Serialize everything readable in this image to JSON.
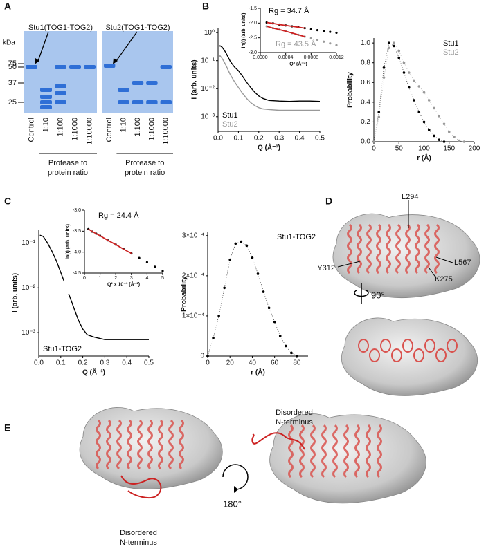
{
  "panel_labels": [
    "A",
    "B",
    "C",
    "D",
    "E"
  ],
  "gel": {
    "unit": "kDa",
    "markers": [
      75,
      50,
      37,
      25
    ],
    "gels": [
      {
        "title": "Stu1(TOG1-TOG2)"
      },
      {
        "title": "Stu2(TOG1-TOG2)"
      }
    ],
    "lanes": [
      "Control",
      "1:10",
      "1:100",
      "1:1000",
      "1:10000"
    ],
    "caption": [
      "Protease to",
      "protein ratio"
    ]
  },
  "chart_data": [
    {
      "type": "line",
      "xlabel": "Q (Å⁻¹)",
      "ylabel": "I (arb. units)",
      "yscale": "log",
      "legend": "lower left",
      "xlim": [
        0,
        0.5
      ],
      "xticks": [
        {
          "value": 0,
          "label": "0.0"
        },
        0.1,
        0.2,
        0.3,
        0.4,
        0.5
      ],
      "ylim": [
        0.0003,
        1.5
      ],
      "yticks": [
        {
          "value": 1,
          "label": "10⁰"
        },
        {
          "value": 0.1,
          "label": "10⁻¹"
        },
        {
          "value": 0.01,
          "label": "10⁻²"
        },
        {
          "value": 0.001,
          "label": "10⁻³"
        }
      ],
      "x": [
        0.005,
        0.01,
        0.02,
        0.03,
        0.04,
        0.05,
        0.06,
        0.08,
        0.1,
        0.12,
        0.14,
        0.16,
        0.18,
        0.2,
        0.22,
        0.25,
        0.3,
        0.35,
        0.4,
        0.45,
        0.5
      ],
      "series": [
        {
          "name": "Stu1",
          "color": "#000000",
          "values": [
            0.32,
            0.34,
            0.3,
            0.24,
            0.18,
            0.13,
            0.095,
            0.06,
            0.044,
            0.028,
            0.017,
            0.011,
            0.0075,
            0.0055,
            0.0045,
            0.0038,
            0.0036,
            0.0035,
            0.0036,
            0.0036,
            0.0035
          ]
        },
        {
          "name": "Stu2",
          "color": "#999999",
          "values": [
            0.14,
            0.15,
            0.12,
            0.09,
            0.065,
            0.045,
            0.032,
            0.018,
            0.011,
            0.0068,
            0.0045,
            0.0032,
            0.0025,
            0.0021,
            0.0019,
            0.0018,
            0.0017,
            0.0017,
            0.0017,
            0.0017,
            0.0017
          ]
        }
      ]
    },
    {
      "type": "scatter",
      "xlabel": "Q² (Å⁻²)",
      "ylabel": "ln(I) (arb. units)",
      "annotations": [
        {
          "text": "Rg = 34.7 Å",
          "color": "#000000"
        },
        {
          "text": "Rg = 43.5 Å",
          "color": "#999999"
        }
      ],
      "xlim": [
        0,
        0.0012
      ],
      "xticks": [
        {
          "value": 0,
          "label": "0.0000"
        },
        {
          "value": 0.0004,
          "label": "0.0004"
        },
        {
          "value": 0.0008,
          "label": "0.0008"
        },
        {
          "value": 0.0012,
          "label": "0.0012"
        }
      ],
      "ylim": [
        -3,
        -1.5
      ],
      "yticks": [
        -1.5,
        {
          "value": -2,
          "label": "-2.0"
        },
        -2.5,
        {
          "value": -3,
          "label": "-3.0"
        }
      ],
      "x": [
        0.0001,
        0.0002,
        0.0003,
        0.0004,
        0.0005,
        0.0006,
        0.0007,
        0.0008,
        0.0009,
        0.001,
        0.0011,
        0.0012
      ],
      "series": [
        {
          "color": "#000000",
          "style": "points",
          "values": [
            -1.98,
            -2.01,
            -2.05,
            -2.08,
            -2.11,
            -2.14,
            -2.17,
            -2.21,
            -2.24,
            -2.27,
            -2.3,
            -2.33
          ]
        },
        {
          "color": "#999999",
          "style": "points",
          "values": [
            -2.11,
            -2.17,
            -2.22,
            -2.28,
            -2.34,
            -2.4,
            -2.46,
            -2.51,
            -2.57,
            -2.63,
            -2.69,
            -2.75
          ]
        },
        {
          "color": "#cc2222",
          "style": "line",
          "values": [
            -1.98,
            -2.01,
            -2.05,
            -2.08,
            -2.11,
            -2.14,
            -2.17,
            null,
            null,
            null,
            null,
            null
          ]
        },
        {
          "color": "#cc2222",
          "style": "line",
          "values": [
            -2.11,
            -2.17,
            -2.22,
            -2.28,
            -2.34,
            -2.4,
            -2.46,
            null,
            null,
            null,
            null,
            null
          ]
        }
      ]
    },
    {
      "type": "line",
      "xlabel": "r (Å)",
      "ylabel": "Probability",
      "legend": "upper right",
      "xlim": [
        0,
        200
      ],
      "xticks": [
        0,
        50,
        100,
        150,
        200
      ],
      "ylim": [
        0,
        1.05
      ],
      "yticks": [
        {
          "value": 0,
          "label": "0.0"
        },
        0.2,
        0.4,
        0.6,
        0.8,
        {
          "value": 1,
          "label": "1.0"
        }
      ],
      "x": [
        0,
        10,
        20,
        30,
        40,
        50,
        60,
        70,
        80,
        90,
        100,
        110,
        120,
        130,
        140,
        150,
        160,
        170,
        180
      ],
      "series": [
        {
          "name": "Stu1",
          "color": "#000000",
          "values": [
            0,
            0.3,
            0.75,
            1.0,
            0.97,
            0.85,
            0.7,
            0.55,
            0.42,
            0.3,
            0.2,
            0.12,
            0.06,
            0.02,
            0,
            null,
            null,
            null,
            null
          ]
        },
        {
          "name": "Stu2",
          "color": "#999999",
          "values": [
            0,
            0.25,
            0.65,
            0.95,
            1.0,
            0.92,
            0.8,
            0.7,
            0.62,
            0.56,
            0.5,
            0.42,
            0.34,
            0.26,
            0.18,
            0.1,
            0.05,
            0.01,
            0
          ]
        }
      ]
    },
    {
      "type": "line",
      "xlabel": "Q (Å⁻¹)",
      "ylabel": "I (arb. units)",
      "yscale": "log",
      "legend": "lower left",
      "xlim": [
        0,
        0.5
      ],
      "xticks": [
        {
          "value": 0,
          "label": "0.0"
        },
        0.1,
        0.2,
        0.3,
        0.4,
        0.5
      ],
      "ylim": [
        0.0003,
        0.2
      ],
      "yticks": [
        {
          "value": 0.1,
          "label": "10⁻¹"
        },
        {
          "value": 0.01,
          "label": "10⁻²"
        },
        {
          "value": 0.001,
          "label": "10⁻³"
        }
      ],
      "x": [
        0.005,
        0.02,
        0.04,
        0.06,
        0.08,
        0.1,
        0.12,
        0.14,
        0.16,
        0.18,
        0.2,
        0.22,
        0.25,
        0.3,
        0.35,
        0.4,
        0.45,
        0.5
      ],
      "series": [
        {
          "name": "Stu1-TOG2",
          "color": "#000000",
          "values": [
            0.15,
            0.14,
            0.1,
            0.065,
            0.04,
            0.022,
            0.012,
            0.0065,
            0.0035,
            0.0019,
            0.0012,
            0.0009,
            0.0008,
            0.0007,
            0.0007,
            0.0007,
            0.0007,
            0.0007
          ]
        }
      ]
    },
    {
      "type": "scatter",
      "xlabel": "Q² x 10⁻³ (Å⁻²)",
      "ylabel": "ln(I) (arb. units)",
      "annotations": [
        {
          "text": "Rg = 24.4 Å",
          "color": "#000000"
        }
      ],
      "xlim": [
        0,
        5
      ],
      "xticks": [
        0,
        1,
        2,
        3,
        4,
        5
      ],
      "ylim": [
        -4.5,
        -3
      ],
      "yticks": [
        {
          "value": -3,
          "label": "-3.0"
        },
        -3.5,
        {
          "value": -4,
          "label": "-4.0"
        },
        -4.5
      ],
      "x": [
        0.25,
        0.5,
        0.75,
        1,
        1.5,
        2,
        2.5,
        3,
        3.5,
        4,
        4.5,
        5
      ],
      "series": [
        {
          "color": "#000000",
          "style": "points",
          "values": [
            -3.45,
            -3.51,
            -3.56,
            -3.61,
            -3.72,
            -3.82,
            -3.93,
            -4.03,
            -4.14,
            -4.24,
            -4.35,
            -4.45
          ]
        },
        {
          "color": "#cc2222",
          "style": "line",
          "values": [
            -3.45,
            -3.51,
            -3.56,
            -3.61,
            -3.72,
            -3.82,
            -3.93,
            -4.03,
            null,
            null,
            null,
            null
          ]
        }
      ]
    },
    {
      "type": "line",
      "xlabel": "r (Å)",
      "ylabel": "Probability",
      "legend": "upper right",
      "xlim": [
        0,
        90
      ],
      "xticks": [
        0,
        20,
        40,
        60,
        80
      ],
      "ylim": [
        0,
        0.00031
      ],
      "yticks": [
        0,
        {
          "value": 0.0001,
          "label": "1×10⁻⁴"
        },
        {
          "value": 0.0002,
          "label": "2×10⁻⁴"
        },
        {
          "value": 0.0003,
          "label": "3×10⁻⁴"
        }
      ],
      "x": [
        0,
        5,
        10,
        15,
        20,
        25,
        30,
        35,
        40,
        45,
        50,
        55,
        60,
        65,
        70,
        75,
        80
      ],
      "series": [
        {
          "name": "Stu1-TOG2",
          "color": "#000000",
          "values": [
            0,
            4.5e-05,
            0.0001,
            0.00017,
            0.00024,
            0.00028,
            0.000285,
            0.000275,
            0.000245,
            0.000205,
            0.00016,
            0.00012,
            8.5e-05,
            5e-05,
            2.5e-05,
            8e-06,
            0
          ]
        }
      ]
    }
  ],
  "structure": {
    "residues": [
      "L294",
      "Y312",
      "L567",
      "K275"
    ],
    "rotation_d": "90°",
    "rotation_e": "180°",
    "annotation": [
      "Disordered",
      "N-terminus"
    ]
  }
}
